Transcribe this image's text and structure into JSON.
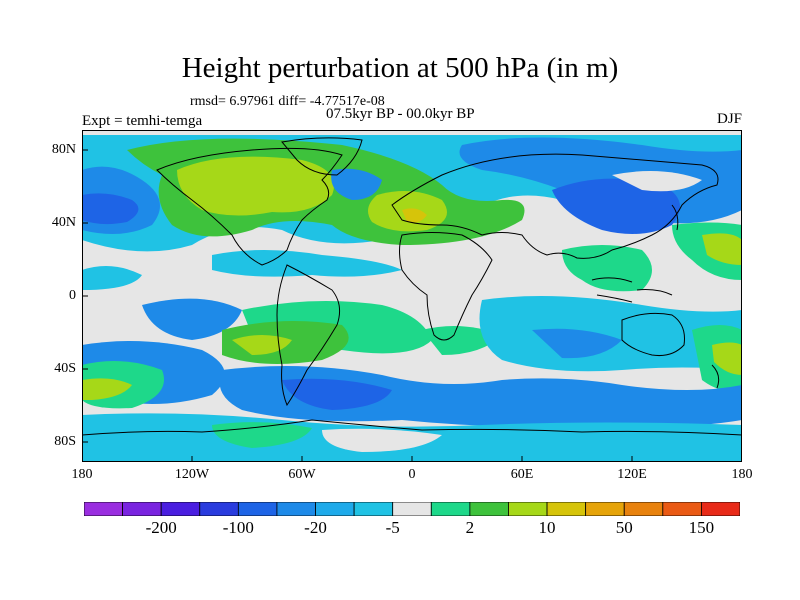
{
  "title": "Height perturbation at 500 hPa (in m)",
  "stats_line": "rmsd= 6.97961 diff= -4.77517e-08",
  "period": "07.5kyr BP - 00.0kyr BP",
  "experiment": "Expt = temhi-temga",
  "season": "DJF",
  "y_ticks": [
    "80N",
    "40N",
    "0",
    "40S",
    "80S"
  ],
  "x_ticks": [
    "180",
    "120W",
    "60W",
    "0",
    "60E",
    "120E",
    "180"
  ],
  "colorbar": {
    "colors": [
      "#9a2ee0",
      "#7a24e0",
      "#4a1ee0",
      "#2a3cde",
      "#1e64e6",
      "#1e8ae8",
      "#1eaaea",
      "#20c2e4",
      "#e6e6e6",
      "#1ed88a",
      "#3ec23c",
      "#a6d818",
      "#d6c40a",
      "#e6a40a",
      "#e8820e",
      "#ea5a14",
      "#e82a18"
    ],
    "labels": [
      {
        "text": "-200",
        "boundary": 2
      },
      {
        "text": "-100",
        "boundary": 4
      },
      {
        "text": "-20",
        "boundary": 6
      },
      {
        "text": "-5",
        "boundary": 8
      },
      {
        "text": "2",
        "boundary": 10
      },
      {
        "text": "10",
        "boundary": 12
      },
      {
        "text": "50",
        "boundary": 14
      },
      {
        "text": "150",
        "boundary": 16
      }
    ]
  }
}
